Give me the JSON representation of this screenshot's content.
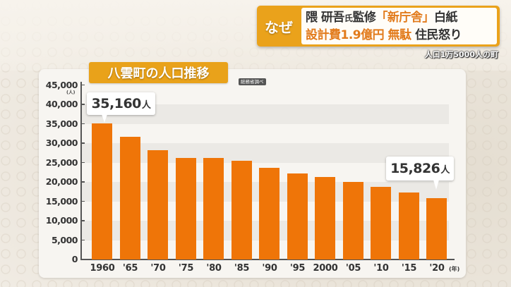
{
  "headline": {
    "tag": "なぜ",
    "line1": [
      {
        "text": "隈 研吾",
        "style": "dark"
      },
      {
        "text": "氏",
        "style": "dark small"
      },
      {
        "text": "監修",
        "style": "dark"
      },
      {
        "text": "「新庁舎」",
        "style": "orange"
      },
      {
        "text": "白紙",
        "style": "dark"
      }
    ],
    "line1_text": "隈 研吾氏監修「新庁舎」白紙",
    "line2_text": "設計費1.9億円無駄 住民怒り",
    "line1_parts": {
      "a": "隈 研吾",
      "b": "氏",
      "c": "監修",
      "d": "「新庁舎」",
      "e": "白紙"
    },
    "line2_parts": {
      "a": "設計費1.9億円 無駄",
      "b": " 住民怒り"
    },
    "subcaption": "人口1万5000人の町"
  },
  "chart_title": "八雲町の人口推移",
  "source_badge": "総務省調べ",
  "callouts": {
    "first": {
      "value": "35,160",
      "unit": "人"
    },
    "last": {
      "value": "15,826",
      "unit": "人"
    }
  },
  "colors": {
    "bar": "#ef7508",
    "title_bg": "#e9a21a",
    "headline_orange": "#eaa21b",
    "accent_text": "#e27b1c"
  },
  "chart_data": {
    "type": "bar",
    "title": "八雲町の人口推移",
    "source": "総務省調べ",
    "xlabel": "(年)",
    "ylabel": "(人)",
    "ylim": [
      0,
      45000
    ],
    "yticks": [
      "0",
      "5,000",
      "10,000",
      "15,000",
      "20,000",
      "25,000",
      "30,000",
      "35,000",
      "40,000",
      "45,000"
    ],
    "categories": [
      "1960",
      "'65",
      "'70",
      "'75",
      "'80",
      "'85",
      "'90",
      "'95",
      "2000",
      "'05",
      "'10",
      "'15",
      "'20"
    ],
    "values": [
      35160,
      31600,
      28200,
      26200,
      26200,
      25500,
      23600,
      22200,
      21300,
      20000,
      18700,
      17300,
      15826
    ],
    "annotations": [
      {
        "category": "1960",
        "label": "35,160人"
      },
      {
        "category": "'20",
        "label": "15,826人"
      }
    ],
    "grid": "alternating horizontal bands",
    "legend": "none"
  }
}
